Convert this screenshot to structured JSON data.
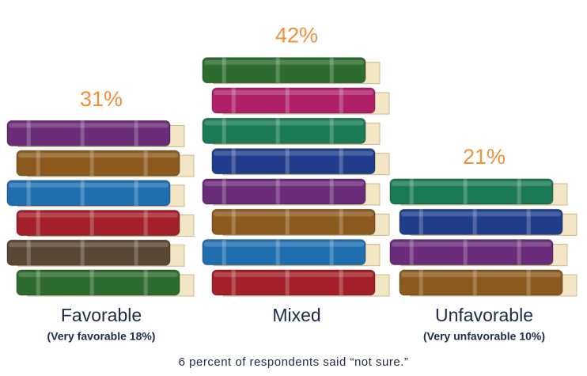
{
  "chart_data": {
    "type": "pictograph",
    "categories": [
      "Favorable",
      "Mixed",
      "Unfavorable"
    ],
    "sublabels": [
      "(Very favorable 18%)",
      null,
      "(Very unfavorable 10%)"
    ],
    "values": [
      31,
      42,
      21
    ],
    "value_labels": [
      "31%",
      "42%",
      "21%"
    ],
    "footnote": "6 percent of respondents said “not sure.”"
  }
}
